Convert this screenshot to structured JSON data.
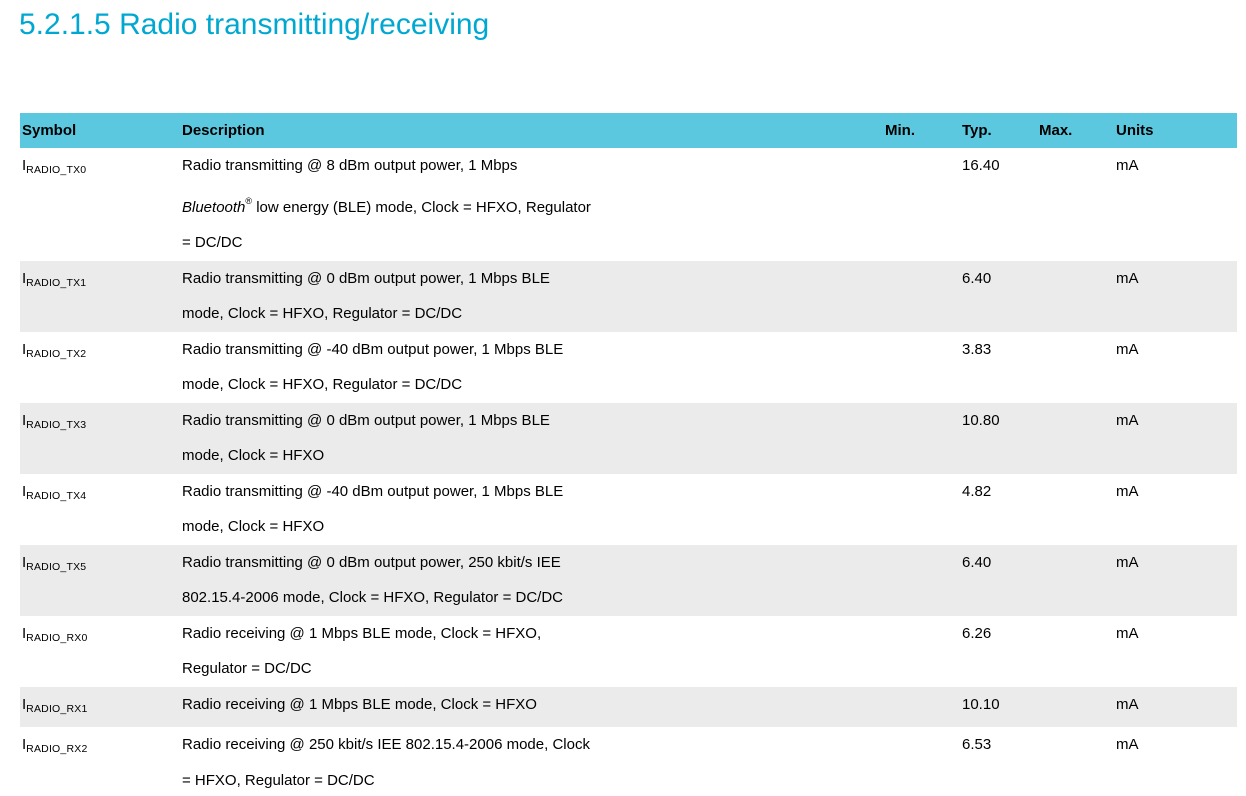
{
  "page": {
    "title": "5.2.1.5 Radio transmitting/receiving"
  },
  "colors": {
    "title_text": "#00a8d1",
    "table_header_bg": "#5cc8e0",
    "alt_row_bg": "#ebebeb",
    "body_text": "#000000"
  },
  "table": {
    "columns": {
      "symbol": "Symbol",
      "description": "Description",
      "min": "Min.",
      "typ": "Typ.",
      "max": "Max.",
      "units": "Units"
    },
    "rows": [
      {
        "symbol_base": "I",
        "symbol_sub": "RADIO_TX0",
        "desc": [
          [
            {
              "t": "Radio transmitting @ 8 dBm output power, 1 Mbps"
            }
          ],
          [
            {
              "t": "Bluetooth",
              "s": "i"
            },
            {
              "t": "®",
              "s": "sup"
            },
            {
              "t": " low energy (BLE) mode, Clock = HFXO, Regulator"
            }
          ],
          [
            {
              "t": "= DC/DC"
            }
          ]
        ],
        "min": "",
        "typ": "16.40",
        "max": "",
        "units": "mA"
      },
      {
        "symbol_base": "I",
        "symbol_sub": "RADIO_TX1",
        "desc": [
          [
            {
              "t": "Radio transmitting @ 0 dBm output power, 1 Mbps BLE"
            }
          ],
          [
            {
              "t": "mode, Clock = HFXO, Regulator = DC/DC"
            }
          ]
        ],
        "min": "",
        "typ": "6.40",
        "max": "",
        "units": "mA"
      },
      {
        "symbol_base": "I",
        "symbol_sub": "RADIO_TX2",
        "desc": [
          [
            {
              "t": "Radio transmitting @ -40 dBm output power, 1 Mbps BLE"
            }
          ],
          [
            {
              "t": "mode, Clock = HFXO, Regulator = DC/DC"
            }
          ]
        ],
        "min": "",
        "typ": "3.83",
        "max": "",
        "units": "mA"
      },
      {
        "symbol_base": "I",
        "symbol_sub": "RADIO_TX3",
        "desc": [
          [
            {
              "t": "Radio transmitting @ 0 dBm output power, 1 Mbps BLE"
            }
          ],
          [
            {
              "t": "mode, Clock = HFXO"
            }
          ]
        ],
        "min": "",
        "typ": "10.80",
        "max": "",
        "units": "mA"
      },
      {
        "symbol_base": "I",
        "symbol_sub": "RADIO_TX4",
        "desc": [
          [
            {
              "t": "Radio transmitting @ -40 dBm output power, 1 Mbps BLE"
            }
          ],
          [
            {
              "t": "mode, Clock = HFXO"
            }
          ]
        ],
        "min": "",
        "typ": "4.82",
        "max": "",
        "units": "mA"
      },
      {
        "symbol_base": "I",
        "symbol_sub": "RADIO_TX5",
        "desc": [
          [
            {
              "t": "Radio transmitting @ 0 dBm output power, 250 kbit/s IEE"
            }
          ],
          [
            {
              "t": "802.15.4-2006 mode, Clock = HFXO, Regulator = DC/DC"
            }
          ]
        ],
        "min": "",
        "typ": "6.40",
        "max": "",
        "units": "mA"
      },
      {
        "symbol_base": "I",
        "symbol_sub": "RADIO_RX0",
        "desc": [
          [
            {
              "t": "Radio receiving @ 1 Mbps BLE mode, Clock = HFXO,"
            }
          ],
          [
            {
              "t": "Regulator = DC/DC"
            }
          ]
        ],
        "min": "",
        "typ": "6.26",
        "max": "",
        "units": "mA"
      },
      {
        "symbol_base": "I",
        "symbol_sub": "RADIO_RX1",
        "desc": [
          [
            {
              "t": "Radio receiving @ 1 Mbps BLE mode, Clock = HFXO"
            }
          ]
        ],
        "min": "",
        "typ": "10.10",
        "max": "",
        "units": "mA"
      },
      {
        "symbol_base": "I",
        "symbol_sub": "RADIO_RX2",
        "desc": [
          [
            {
              "t": "Radio receiving @ 250 kbit/s IEE 802.15.4-2006 mode, Clock"
            }
          ],
          [
            {
              "t": "= HFXO, Regulator = DC/DC"
            }
          ]
        ],
        "min": "",
        "typ": "6.53",
        "max": "",
        "units": "mA"
      }
    ]
  }
}
